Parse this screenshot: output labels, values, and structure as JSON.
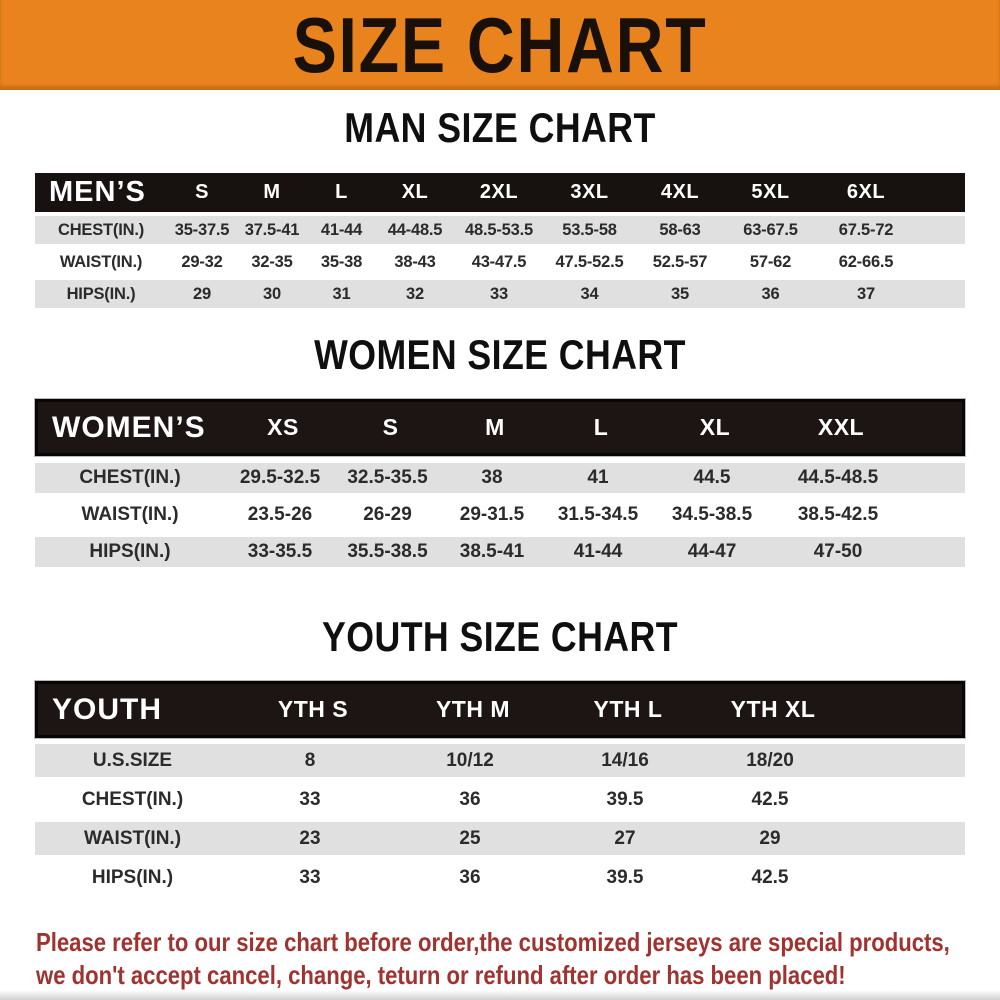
{
  "banner": {
    "title": "SIZE CHART"
  },
  "colors": {
    "banner_bg": "#E8831D",
    "header_bar": "#171110",
    "stripe": "#E0E0E0",
    "footer_text": "#A03330"
  },
  "men": {
    "section_title": "MAN SIZE CHART",
    "label": "MEN’S",
    "sizes": [
      "S",
      "M",
      "L",
      "XL",
      "2XL",
      "3XL",
      "4XL",
      "5XL",
      "6XL"
    ],
    "rows": [
      {
        "label": "CHEST(IN.)",
        "values": [
          "35-37.5",
          "37.5-41",
          "41-44",
          "44-48.5",
          "48.5-53.5",
          "53.5-58",
          "58-63",
          "63-67.5",
          "67.5-72"
        ]
      },
      {
        "label": "WAIST(IN.)",
        "values": [
          "29-32",
          "32-35",
          "35-38",
          "38-43",
          "43-47.5",
          "47.5-52.5",
          "52.5-57",
          "57-62",
          "62-66.5"
        ]
      },
      {
        "label": "HIPS(IN.)",
        "values": [
          "29",
          "30",
          "31",
          "32",
          "33",
          "34",
          "35",
          "36",
          "37"
        ]
      }
    ]
  },
  "women": {
    "section_title": "WOMEN SIZE CHART",
    "label": "WOMEN’S",
    "sizes": [
      "XS",
      "S",
      "M",
      "L",
      "XL",
      "XXL"
    ],
    "rows": [
      {
        "label": "CHEST(IN.)",
        "values": [
          "29.5-32.5",
          "32.5-35.5",
          "38",
          "41",
          "44.5",
          "44.5-48.5"
        ]
      },
      {
        "label": "WAIST(IN.)",
        "values": [
          "23.5-26",
          "26-29",
          "29-31.5",
          "31.5-34.5",
          "34.5-38.5",
          "38.5-42.5"
        ]
      },
      {
        "label": "HIPS(IN.)",
        "values": [
          "33-35.5",
          "35.5-38.5",
          "38.5-41",
          "41-44",
          "44-47",
          "47-50"
        ]
      }
    ]
  },
  "youth": {
    "section_title": "YOUTH SIZE CHART",
    "label": "YOUTH",
    "sizes": [
      "YTH S",
      "YTH M",
      "YTH L",
      "YTH XL"
    ],
    "rows": [
      {
        "label": "U.S.SIZE",
        "values": [
          "8",
          "10/12",
          "14/16",
          "18/20"
        ]
      },
      {
        "label": "CHEST(IN.)",
        "values": [
          "33",
          "36",
          "39.5",
          "42.5"
        ]
      },
      {
        "label": "WAIST(IN.)",
        "values": [
          "23",
          "25",
          "27",
          "29"
        ]
      },
      {
        "label": "HIPS(IN.)",
        "values": [
          "33",
          "36",
          "39.5",
          "42.5"
        ]
      }
    ]
  },
  "footer": {
    "line1": "Please refer to our size chart before order,the customized jerseys are special products,",
    "line2": "we don't accept cancel, change, teturn or refund after order has been placed!"
  }
}
